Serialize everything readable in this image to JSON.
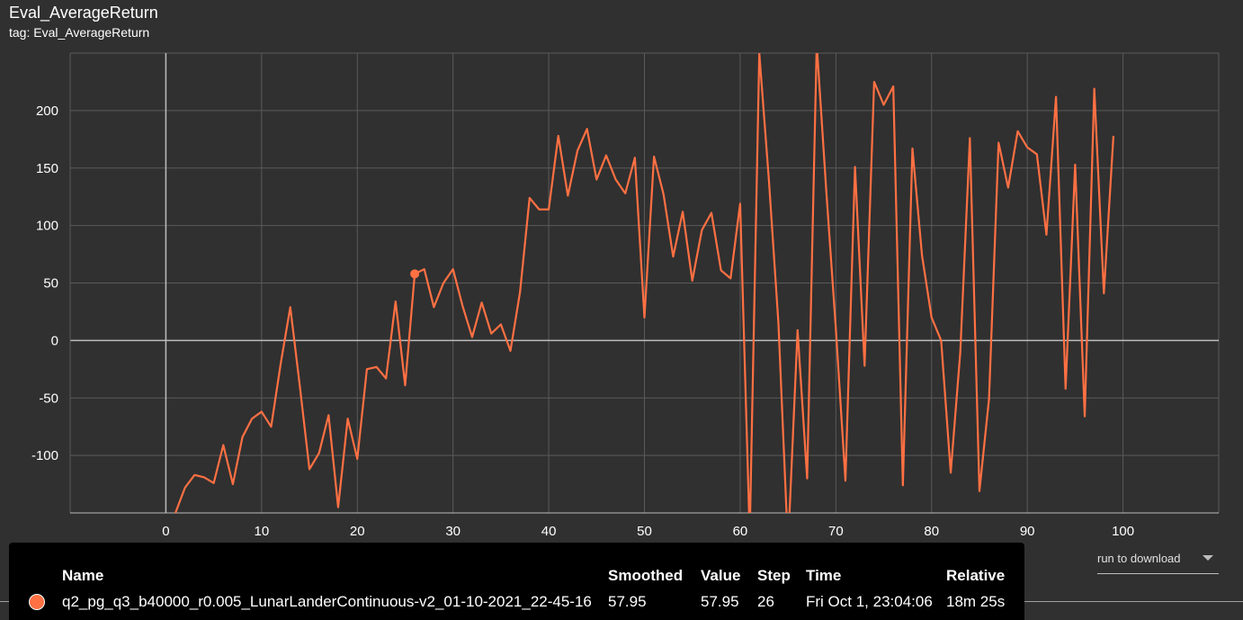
{
  "header": {
    "title": "Eval_AverageReturn",
    "tag": "tag: Eval_AverageReturn"
  },
  "colors": {
    "background": "#303030",
    "series": "#ff7043",
    "grid": "#5a5a5a",
    "axis": "#bdbdbd"
  },
  "chart_data": {
    "type": "line",
    "title": "Eval_AverageReturn",
    "xlabel": "",
    "ylabel": "",
    "xlim": [
      -10,
      110
    ],
    "ylim": [
      -150,
      250
    ],
    "xticks": [
      0,
      10,
      20,
      30,
      40,
      50,
      60,
      70,
      80,
      90,
      100
    ],
    "yticks": [
      -100,
      -50,
      0,
      50,
      100,
      150,
      200
    ],
    "grid": true,
    "legend": "none",
    "highlight": {
      "x": 26,
      "y": 57.95
    },
    "series": [
      {
        "name": "q2_pg_q3_b40000_r0.005_LunarLanderContinuous-v2_01-10-2021_22-45-16",
        "x": [
          0,
          1,
          2,
          3,
          4,
          5,
          6,
          7,
          8,
          9,
          10,
          11,
          12,
          13,
          14,
          15,
          16,
          17,
          18,
          19,
          20,
          21,
          22,
          23,
          24,
          25,
          26,
          27,
          28,
          29,
          30,
          31,
          32,
          33,
          34,
          35,
          36,
          37,
          38,
          39,
          40,
          41,
          42,
          43,
          44,
          45,
          46,
          47,
          48,
          49,
          50,
          51,
          52,
          53,
          54,
          55,
          56,
          57,
          58,
          59,
          60,
          61,
          62,
          63,
          64,
          65,
          66,
          67,
          68,
          69,
          70,
          71,
          72,
          73,
          74,
          75,
          76,
          77,
          78,
          79,
          80,
          81,
          82,
          83,
          84,
          85,
          86,
          87,
          88,
          89,
          90,
          91,
          92,
          93,
          94,
          95,
          96,
          97,
          98,
          99
        ],
        "values": [
          -190,
          -150,
          -128,
          -117,
          -119,
          -124,
          -91,
          -125,
          -84,
          -68,
          -62,
          -75,
          -20,
          29,
          -40,
          -112,
          -98,
          -65,
          -145,
          -68,
          -103,
          -25,
          -23,
          -33,
          34,
          -39,
          57.95,
          62,
          29,
          50,
          62,
          30,
          3,
          33,
          6,
          14,
          -9,
          42,
          124,
          114,
          114,
          178,
          126,
          165,
          184,
          140,
          161,
          140,
          128,
          159,
          20,
          160,
          127,
          73,
          112,
          52,
          96,
          111,
          61,
          54,
          119,
          -170,
          250,
          140,
          15,
          -180,
          9,
          -120,
          258,
          130,
          10,
          -122,
          151,
          -22,
          225,
          205,
          221,
          -126,
          167,
          74,
          20,
          0,
          -115,
          -10,
          176,
          -131,
          -51,
          172,
          133,
          182,
          168,
          162,
          92,
          212,
          -42,
          153,
          -66,
          219,
          41,
          178
        ]
      }
    ]
  },
  "toolbar": {
    "buttons": [
      "fullscreen-icon",
      "list-icon",
      "fit-domain-icon",
      "download-icon"
    ]
  },
  "download": {
    "label": "run to download"
  },
  "tooltip": {
    "headers": {
      "name": "Name",
      "smoothed": "Smoothed",
      "value": "Value",
      "step": "Step",
      "time": "Time",
      "relative": "Relative"
    },
    "row": {
      "name": "q2_pg_q3_b40000_r0.005_LunarLanderContinuous-v2_01-10-2021_22-45-16",
      "smoothed": "57.95",
      "value": "57.95",
      "step": "26",
      "time": "Fri Oct 1, 23:04:06",
      "relative": "18m 25s"
    }
  }
}
